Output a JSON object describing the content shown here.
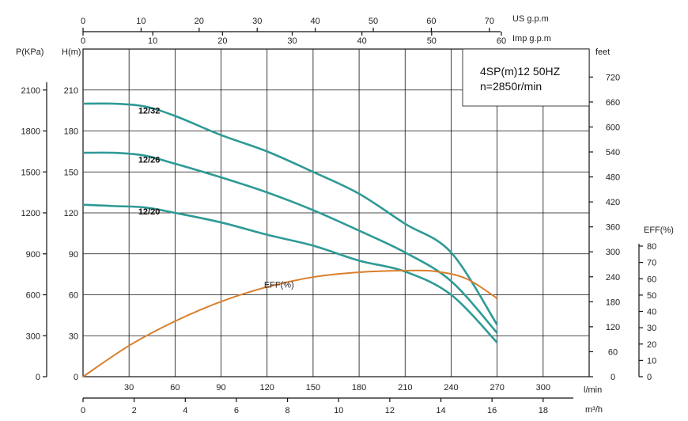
{
  "chart_data": {
    "type": "line",
    "title": "4SP(m)12 50HZ",
    "subtitle": "n=2850r/min",
    "x_label_primary": "l/min",
    "x_label_m3h": "m³/h",
    "x_label_usgpm": "US g.p.m",
    "x_label_impgpm": "Imp g.p.m",
    "y_label_head": "H(m)",
    "y_label_pressure": "P(KPa)",
    "y_label_feet": "feet",
    "y_label_eff": "EFF(%)",
    "eff_curve_label": "EFF(%)",
    "xlim": [
      0,
      330
    ],
    "ylim": [
      0,
      240
    ],
    "x_ticks_lmin": [
      30,
      60,
      90,
      120,
      150,
      180,
      210,
      240,
      270,
      300
    ],
    "x_ticks_m3h": [
      0,
      2,
      4,
      6,
      8,
      10,
      12,
      14,
      16,
      18
    ],
    "x_ticks_usgpm": [
      0,
      10,
      20,
      30,
      40,
      50,
      60,
      70
    ],
    "x_ticks_impgpm": [
      0,
      10,
      20,
      30,
      40,
      50,
      60
    ],
    "y_ticks_head": [
      0,
      30,
      60,
      90,
      120,
      150,
      180,
      210
    ],
    "y_ticks_pressure": [
      0,
      300,
      600,
      900,
      1200,
      1500,
      1800,
      2100
    ],
    "y_ticks_feet": [
      0,
      60,
      120,
      180,
      240,
      300,
      360,
      420,
      480,
      540,
      600,
      660,
      720
    ],
    "y_ticks_eff": [
      0,
      10,
      20,
      30,
      40,
      50,
      60,
      70,
      80
    ],
    "series": [
      {
        "name": "12/32",
        "x": [
          0,
          20,
          40,
          60,
          90,
          120,
          150,
          180,
          210,
          240,
          270
        ],
        "values": [
          200,
          200,
          198,
          191,
          177,
          165,
          150,
          134,
          112,
          91,
          38
        ]
      },
      {
        "name": "12/26",
        "x": [
          0,
          20,
          40,
          60,
          90,
          120,
          150,
          180,
          210,
          240,
          270
        ],
        "values": [
          164,
          164,
          162,
          156,
          146,
          135,
          122,
          107,
          91,
          70,
          32
        ]
      },
      {
        "name": "12/20",
        "x": [
          0,
          20,
          40,
          60,
          90,
          120,
          150,
          180,
          210,
          240,
          270
        ],
        "values": [
          126,
          125,
          124,
          120,
          113,
          104,
          96,
          85,
          77,
          60,
          25
        ]
      }
    ],
    "efficiency": {
      "name": "EFF(%)",
      "x": [
        0,
        30,
        60,
        90,
        120,
        150,
        180,
        210,
        230,
        250,
        270
      ],
      "values": [
        0,
        19,
        34,
        46,
        55,
        61,
        64,
        65,
        64.5,
        60,
        48
      ]
    },
    "grid": true
  },
  "colors": {
    "curve": "#2e9a96",
    "efficiency": "#d97e2c",
    "axis": "#111111"
  }
}
